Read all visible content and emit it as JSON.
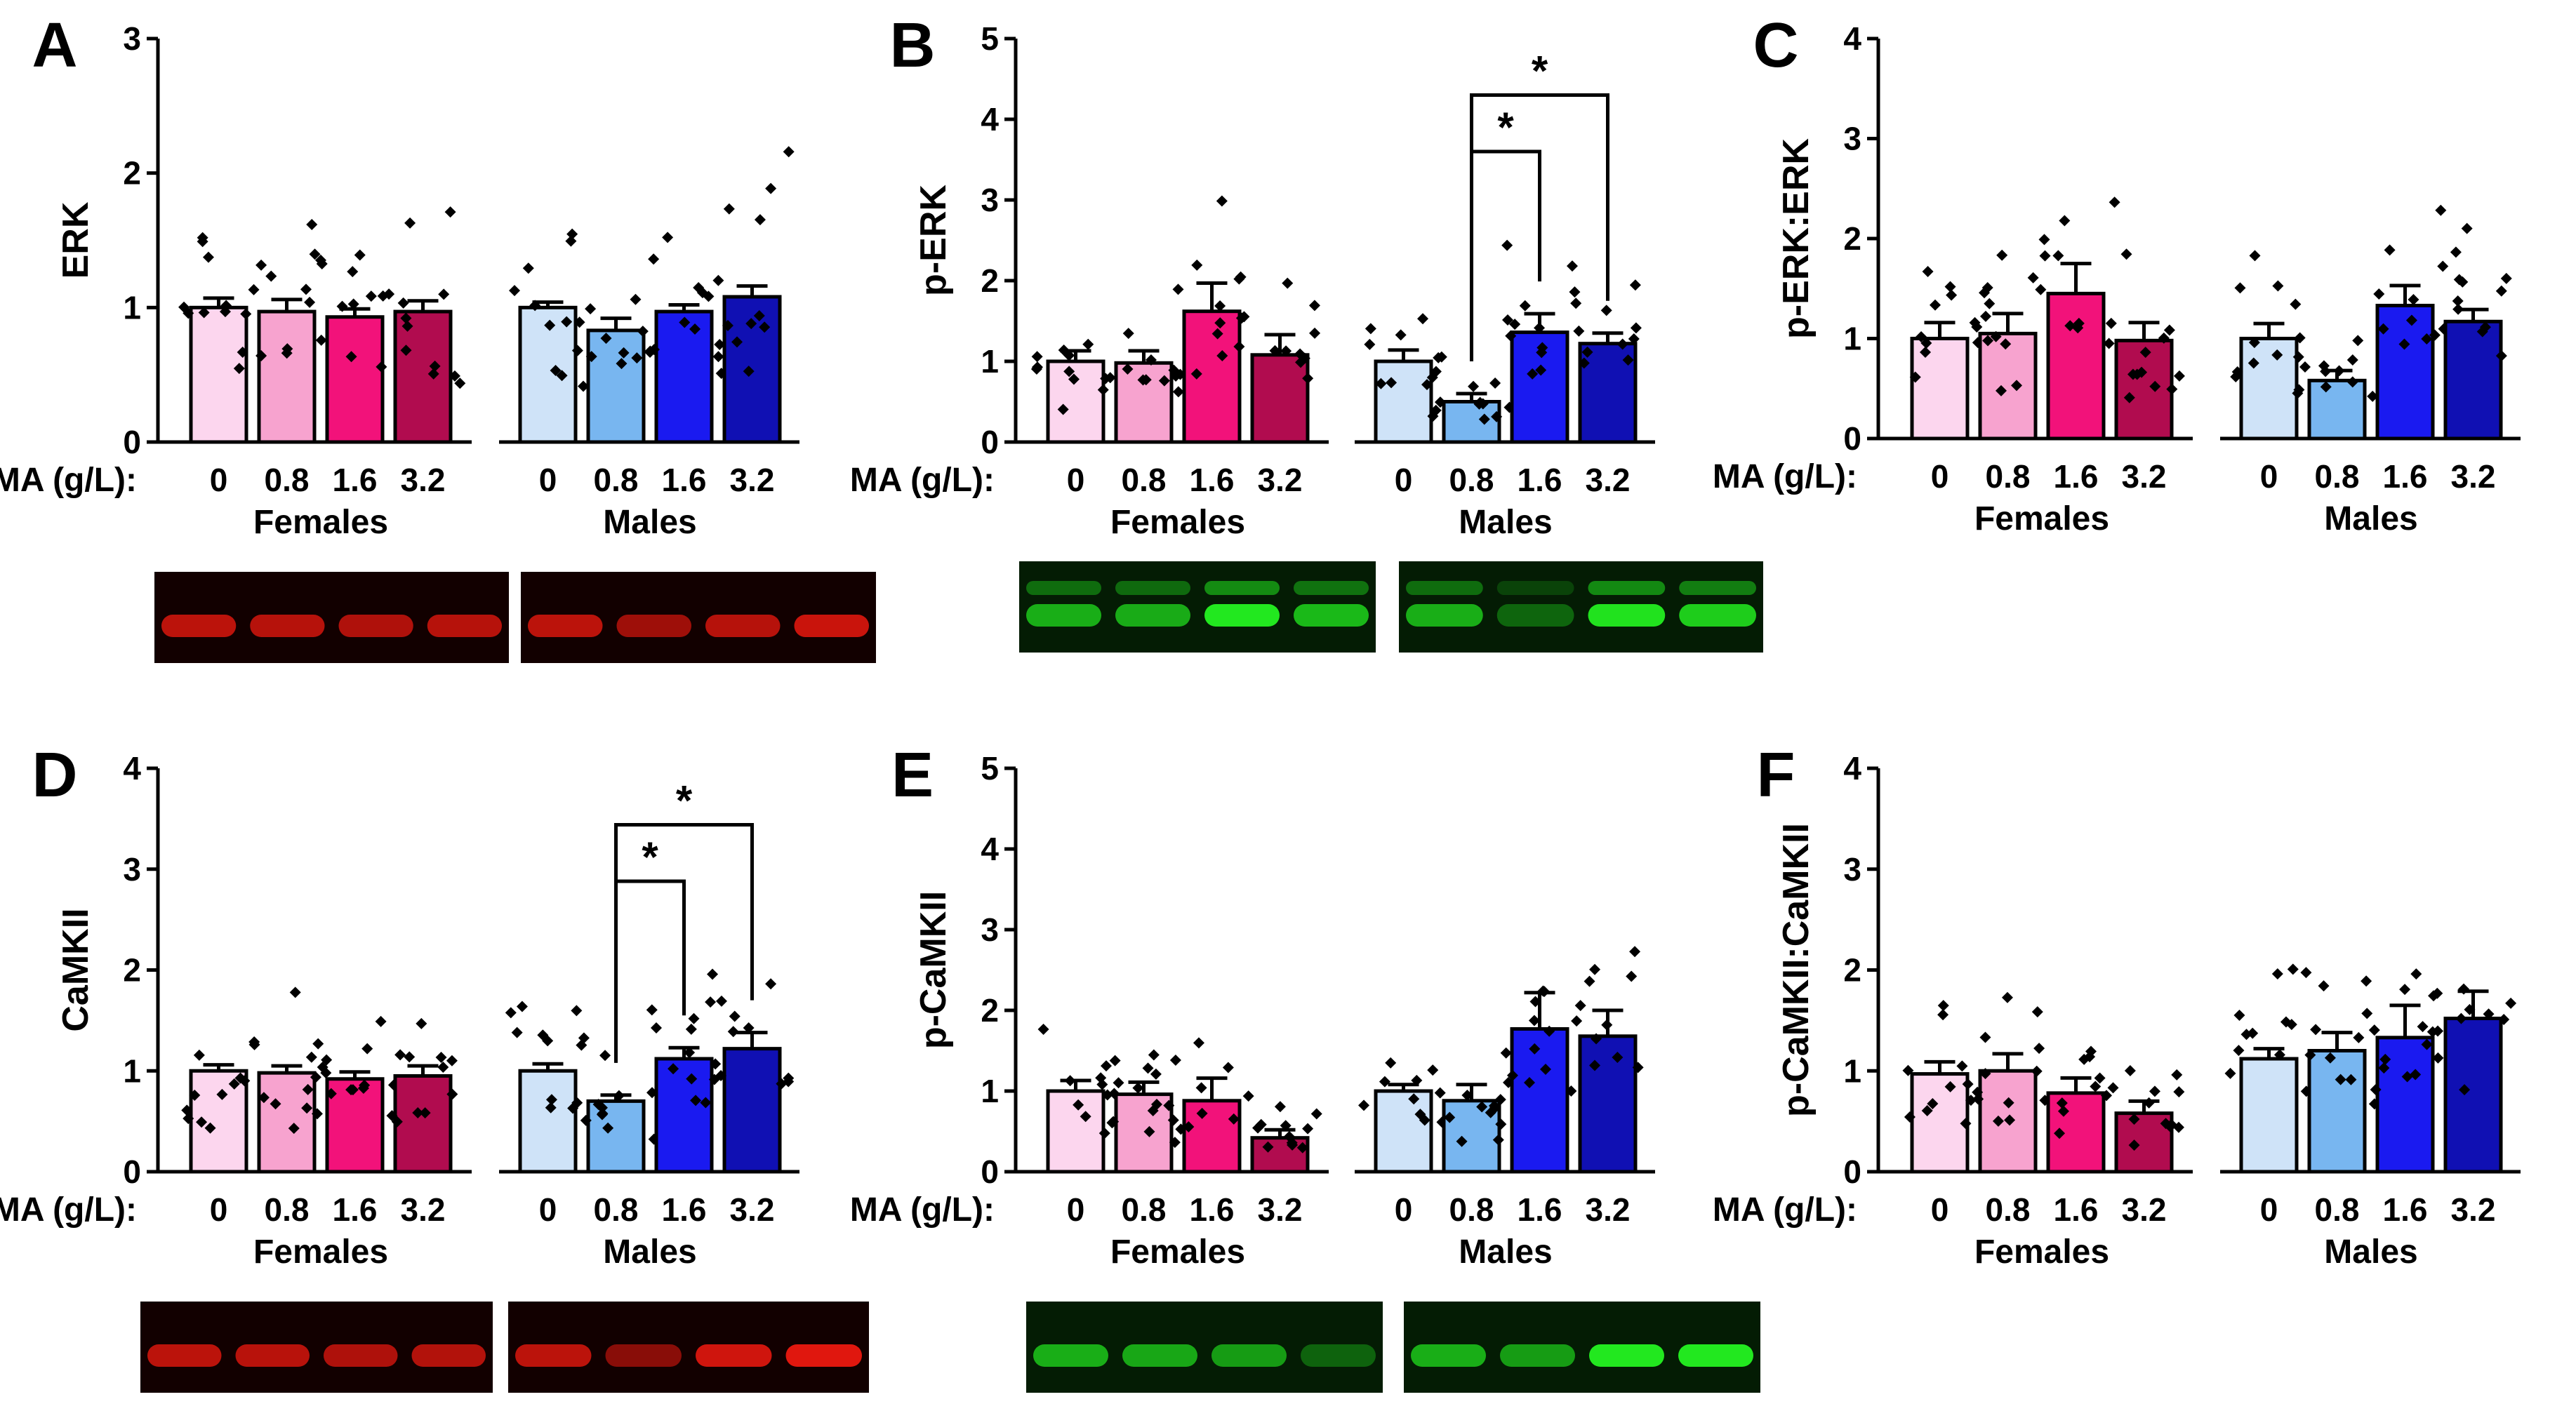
{
  "colors": {
    "f0": "#fcd6ee",
    "f1": "#f7a3cf",
    "f2": "#f2127a",
    "f3": "#b10c4f",
    "m0": "#cfe3f8",
    "m1": "#78b6f0",
    "m2": "#1a1af0",
    "m3": "#1010b3",
    "red_band": "#ff1a10",
    "green_band": "#22e81f"
  },
  "blot_legend": {
    "red": "red-band",
    "green": "green-band"
  },
  "chart_data": [
    {
      "panel": "A",
      "type": "bar",
      "ylabel": "ERK",
      "ylim": [
        0,
        3
      ],
      "yticks": [
        0,
        1,
        2,
        3
      ],
      "xlabel": "MA (g/L):",
      "groups": [
        "Females",
        "Males"
      ],
      "categories": [
        "0",
        "0.8",
        "1.6",
        "3.2"
      ],
      "series": [
        {
          "name": "Females",
          "values": [
            1.0,
            0.97,
            0.93,
            0.97
          ],
          "sem": [
            0.07,
            0.09,
            0.06,
            0.08
          ]
        },
        {
          "name": "Males",
          "values": [
            1.0,
            0.83,
            0.97,
            1.08
          ],
          "sem": [
            0.04,
            0.09,
            0.05,
            0.08
          ]
        }
      ],
      "significance": [],
      "blot": "red"
    },
    {
      "panel": "B",
      "type": "bar",
      "ylabel": "p-ERK",
      "ylim": [
        0,
        5
      ],
      "yticks": [
        0,
        1,
        2,
        3,
        4,
        5
      ],
      "xlabel": "MA (g/L):",
      "groups": [
        "Females",
        "Males"
      ],
      "categories": [
        "0",
        "0.8",
        "1.6",
        "3.2"
      ],
      "series": [
        {
          "name": "Females",
          "values": [
            1.0,
            0.98,
            1.62,
            1.08
          ],
          "sem": [
            0.13,
            0.15,
            0.35,
            0.25
          ]
        },
        {
          "name": "Males",
          "values": [
            1.0,
            0.5,
            1.36,
            1.22
          ],
          "sem": [
            0.14,
            0.1,
            0.23,
            0.13
          ]
        }
      ],
      "significance": [
        {
          "group": "Males",
          "from": "0.8",
          "to": "1.6",
          "label": "*"
        },
        {
          "group": "Males",
          "from": "0.8",
          "to": "3.2",
          "label": "*"
        }
      ],
      "blot": "green"
    },
    {
      "panel": "C",
      "type": "bar",
      "ylabel": "p-ERK:ERK",
      "ylim": [
        0,
        4
      ],
      "yticks": [
        0,
        1,
        2,
        3,
        4
      ],
      "xlabel": "MA (g/L):",
      "groups": [
        "Females",
        "Males"
      ],
      "categories": [
        "0",
        "0.8",
        "1.6",
        "3.2"
      ],
      "series": [
        {
          "name": "Females",
          "values": [
            1.0,
            1.05,
            1.45,
            0.98
          ],
          "sem": [
            0.16,
            0.2,
            0.3,
            0.18
          ]
        },
        {
          "name": "Males",
          "values": [
            1.0,
            0.58,
            1.33,
            1.17
          ],
          "sem": [
            0.15,
            0.1,
            0.2,
            0.12
          ]
        }
      ],
      "significance": [],
      "blot": null
    },
    {
      "panel": "D",
      "type": "bar",
      "ylabel": "CaMKII",
      "ylim": [
        0,
        4
      ],
      "yticks": [
        0,
        1,
        2,
        3,
        4
      ],
      "xlabel": "MA (g/L):",
      "groups": [
        "Females",
        "Males"
      ],
      "categories": [
        "0",
        "0.8",
        "1.6",
        "3.2"
      ],
      "series": [
        {
          "name": "Females",
          "values": [
            1.0,
            0.98,
            0.92,
            0.95
          ],
          "sem": [
            0.06,
            0.07,
            0.07,
            0.1
          ]
        },
        {
          "name": "Males",
          "values": [
            1.0,
            0.7,
            1.12,
            1.22
          ],
          "sem": [
            0.07,
            0.06,
            0.11,
            0.16
          ]
        }
      ],
      "significance": [
        {
          "group": "Males",
          "from": "0.8",
          "to": "1.6",
          "label": "*"
        },
        {
          "group": "Males",
          "from": "0.8",
          "to": "3.2",
          "label": "*"
        }
      ],
      "blot": "red"
    },
    {
      "panel": "E",
      "type": "bar",
      "ylabel": "p-CaMKII",
      "ylim": [
        0,
        5
      ],
      "yticks": [
        0,
        1,
        2,
        3,
        4,
        5
      ],
      "xlabel": "MA (g/L):",
      "groups": [
        "Females",
        "Males"
      ],
      "categories": [
        "0",
        "0.8",
        "1.6",
        "3.2"
      ],
      "series": [
        {
          "name": "Females",
          "values": [
            1.0,
            0.96,
            0.88,
            0.42
          ],
          "sem": [
            0.13,
            0.15,
            0.28,
            0.1
          ]
        },
        {
          "name": "Males",
          "values": [
            1.0,
            0.88,
            1.77,
            1.68
          ],
          "sem": [
            0.08,
            0.2,
            0.45,
            0.32
          ]
        }
      ],
      "significance": [],
      "blot": "green"
    },
    {
      "panel": "F",
      "type": "bar",
      "ylabel": "p-CaMKII:CaMKII",
      "ylim": [
        0,
        4
      ],
      "yticks": [
        0,
        1,
        2,
        3,
        4
      ],
      "xlabel": "MA (g/L):",
      "groups": [
        "Females",
        "Males"
      ],
      "categories": [
        "0",
        "0.8",
        "1.6",
        "3.2"
      ],
      "series": [
        {
          "name": "Females",
          "values": [
            0.97,
            1.0,
            0.78,
            0.58
          ],
          "sem": [
            0.12,
            0.17,
            0.15,
            0.12
          ]
        },
        {
          "name": "Males",
          "values": [
            1.12,
            1.2,
            1.33,
            1.52
          ],
          "sem": [
            0.1,
            0.18,
            0.32,
            0.27
          ]
        }
      ],
      "significance": [],
      "blot": null
    }
  ]
}
